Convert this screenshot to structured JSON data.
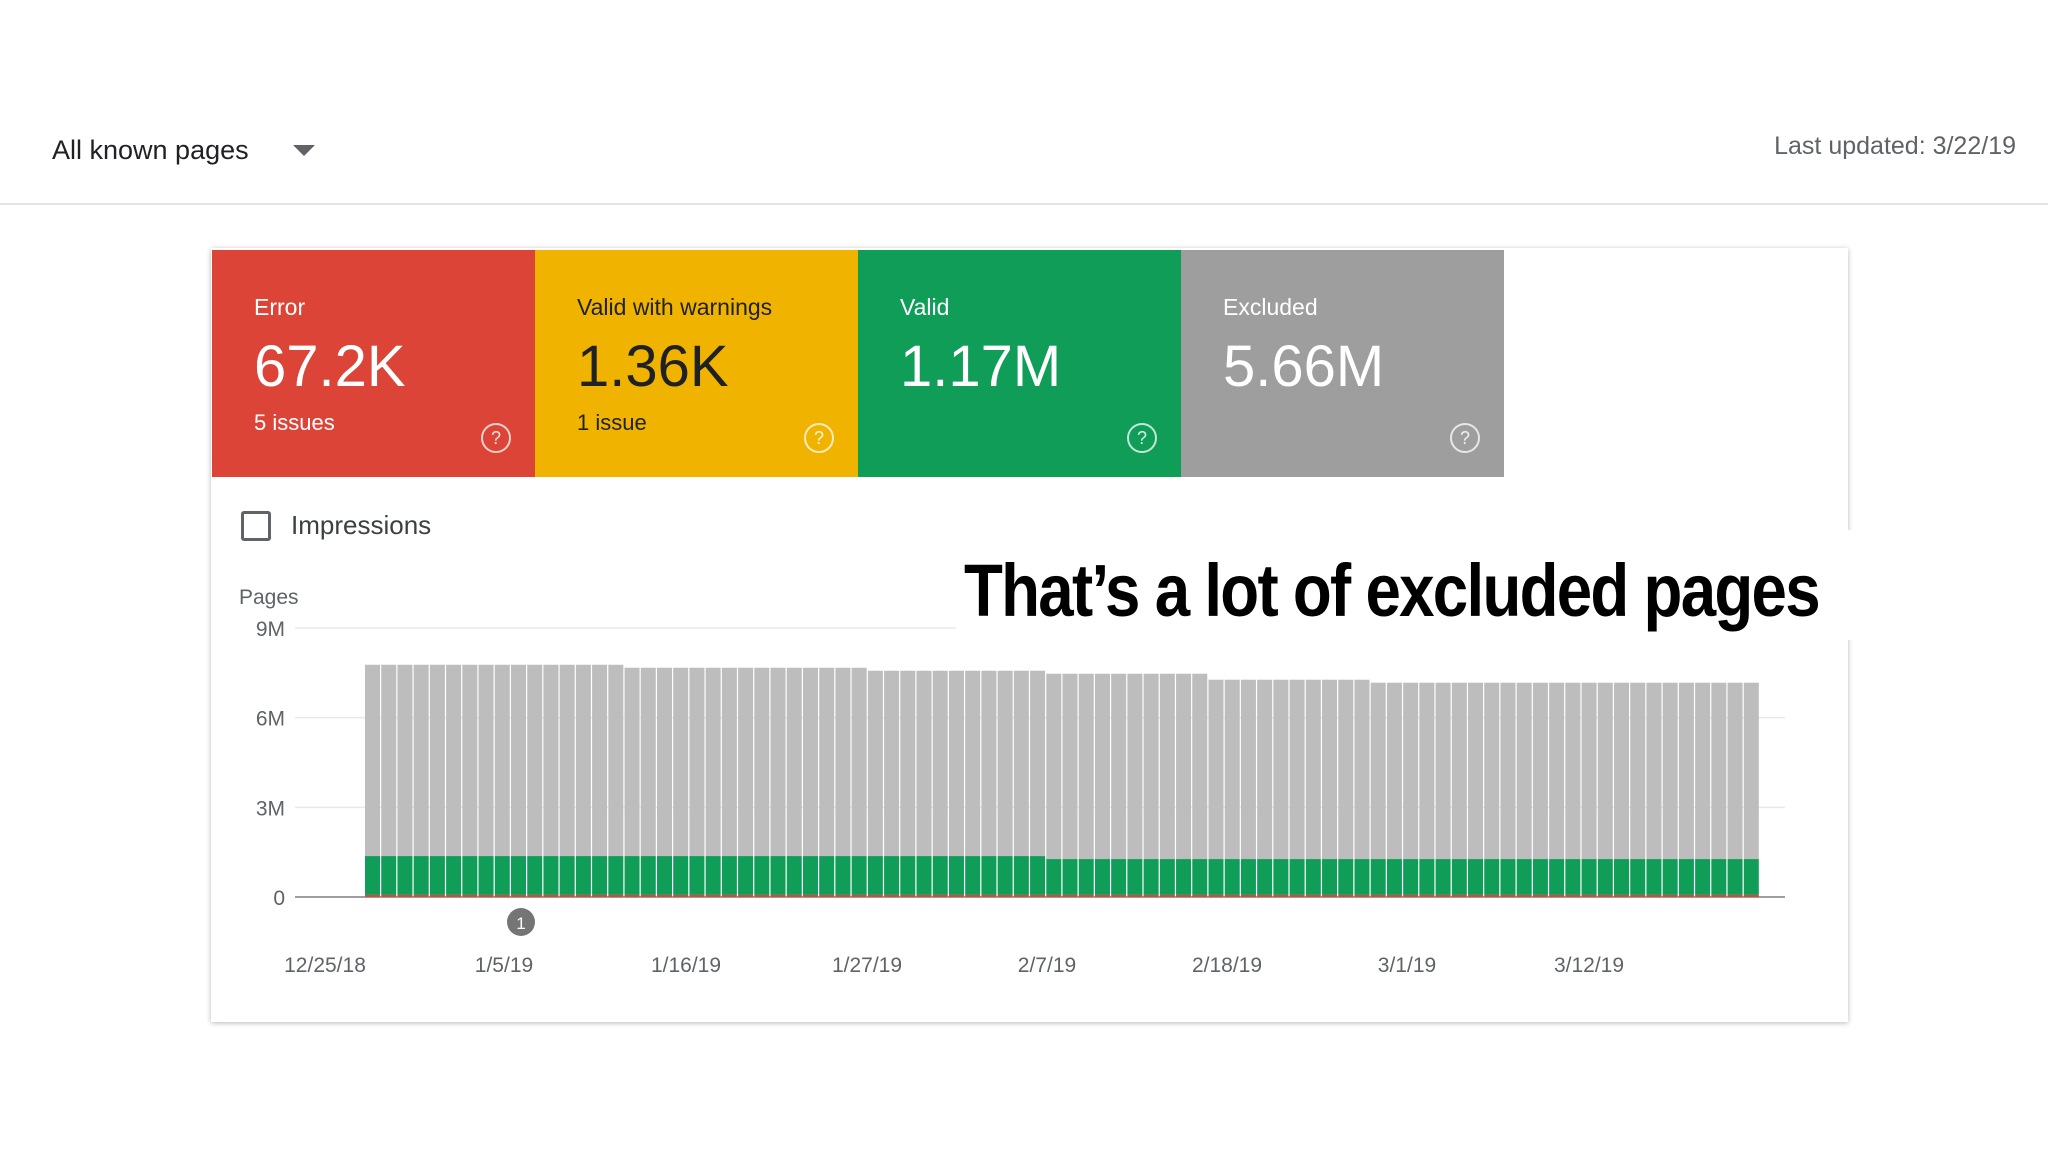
{
  "header": {
    "filter_label": "All known pages",
    "last_updated": "Last updated: 3/22/19"
  },
  "tiles": [
    {
      "label": "Error",
      "value": "67.2K",
      "sub": "5 issues",
      "color": "#db4437"
    },
    {
      "label": "Valid with warnings",
      "value": "1.36K",
      "sub": "1 issue",
      "color": "#f0b400"
    },
    {
      "label": "Valid",
      "value": "1.17M",
      "sub": "",
      "color": "#0f9d58"
    },
    {
      "label": "Excluded",
      "value": "5.66M",
      "sub": "",
      "color": "#9e9e9e"
    }
  ],
  "help_glyph": "?",
  "impressions_label": "Impressions",
  "annotation_marker": "1",
  "overlay_caption": "That’s a lot of excluded pages",
  "chart_data": {
    "type": "bar",
    "stacked": true,
    "ylabel": "Pages",
    "y_ticks": [
      "9M",
      "6M",
      "3M",
      "0"
    ],
    "y_tick_values": [
      9000000,
      6000000,
      3000000,
      0
    ],
    "ylim": [
      0,
      9000000
    ],
    "x_ticks": [
      "12/25/18",
      "1/5/19",
      "1/16/19",
      "1/27/19",
      "2/7/19",
      "2/18/19",
      "3/1/19",
      "3/12/19"
    ],
    "x_start": "12/30/18",
    "x_end": "3/21/19",
    "grid": true,
    "series": [
      {
        "name": "Error",
        "color": "#db4437",
        "values": [
          70000,
          70000,
          70000,
          70000,
          70000,
          70000,
          70000,
          70000,
          70000,
          70000,
          70000,
          70000,
          70000,
          70000,
          70000,
          70000,
          70000,
          70000,
          70000,
          70000,
          70000,
          70000,
          70000,
          70000,
          70000,
          70000,
          70000,
          70000,
          70000,
          70000,
          70000,
          70000,
          70000,
          70000,
          70000,
          70000,
          70000,
          70000,
          70000,
          70000,
          70000,
          70000,
          70000,
          70000,
          70000,
          70000,
          70000,
          70000,
          70000,
          70000,
          70000,
          70000,
          70000,
          70000,
          70000,
          70000,
          70000,
          70000,
          70000,
          70000,
          70000,
          70000,
          70000,
          70000,
          70000,
          70000,
          70000,
          70000,
          70000,
          70000,
          70000,
          70000,
          70000,
          70000,
          70000,
          70000,
          70000,
          70000,
          70000,
          70000,
          70000,
          70000,
          70000,
          70000,
          70000,
          70000
        ]
      },
      {
        "name": "Valid",
        "color": "#0f9d58",
        "values": [
          1300000,
          1300000,
          1300000,
          1300000,
          1300000,
          1300000,
          1300000,
          1300000,
          1300000,
          1300000,
          1300000,
          1300000,
          1300000,
          1300000,
          1300000,
          1300000,
          1300000,
          1300000,
          1300000,
          1300000,
          1300000,
          1300000,
          1300000,
          1300000,
          1300000,
          1300000,
          1300000,
          1300000,
          1300000,
          1300000,
          1300000,
          1300000,
          1300000,
          1300000,
          1300000,
          1300000,
          1300000,
          1300000,
          1300000,
          1300000,
          1300000,
          1300000,
          1200000,
          1200000,
          1200000,
          1200000,
          1200000,
          1200000,
          1200000,
          1200000,
          1200000,
          1200000,
          1200000,
          1200000,
          1200000,
          1200000,
          1200000,
          1200000,
          1200000,
          1200000,
          1200000,
          1200000,
          1200000,
          1200000,
          1200000,
          1200000,
          1200000,
          1200000,
          1200000,
          1200000,
          1200000,
          1200000,
          1200000,
          1200000,
          1200000,
          1200000,
          1200000,
          1200000,
          1200000,
          1200000,
          1200000,
          1200000,
          1200000,
          1200000,
          1200000,
          1200000
        ]
      },
      {
        "name": "Excluded",
        "color": "#bdbdbd",
        "values": [
          6400000,
          6400000,
          6400000,
          6400000,
          6400000,
          6400000,
          6400000,
          6400000,
          6400000,
          6400000,
          6400000,
          6400000,
          6400000,
          6400000,
          6400000,
          6400000,
          6300000,
          6300000,
          6300000,
          6300000,
          6300000,
          6300000,
          6300000,
          6300000,
          6300000,
          6300000,
          6300000,
          6300000,
          6300000,
          6300000,
          6300000,
          6200000,
          6200000,
          6200000,
          6200000,
          6200000,
          6200000,
          6200000,
          6200000,
          6200000,
          6200000,
          6200000,
          6200000,
          6200000,
          6200000,
          6200000,
          6200000,
          6200000,
          6200000,
          6200000,
          6200000,
          6200000,
          6000000,
          6000000,
          6000000,
          6000000,
          6000000,
          6000000,
          6000000,
          6000000,
          6000000,
          6000000,
          5900000,
          5900000,
          5900000,
          5900000,
          5900000,
          5900000,
          5900000,
          5900000,
          5900000,
          5900000,
          5900000,
          5900000,
          5900000,
          5900000,
          5900000,
          5900000,
          5900000,
          5900000,
          5900000,
          5900000,
          5900000,
          5900000,
          5900000,
          5900000
        ]
      }
    ]
  }
}
